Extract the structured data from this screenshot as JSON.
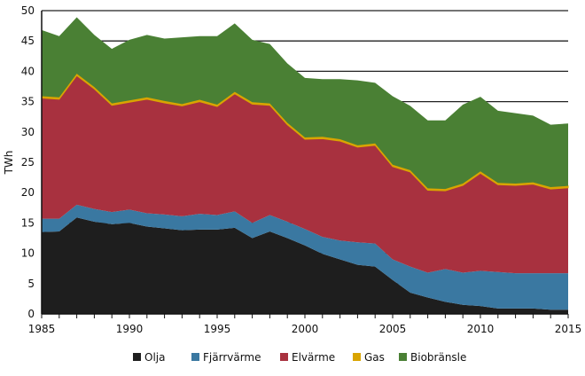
{
  "chart_data": {
    "type": "area",
    "stacked": true,
    "title": "",
    "xlabel": "",
    "ylabel": "TWh",
    "xlim": [
      1985,
      2015
    ],
    "ylim": [
      0,
      50
    ],
    "xticks": [
      "1985",
      "1990",
      "1995",
      "2000",
      "2005",
      "2010",
      "2015"
    ],
    "yticks": [
      "0",
      "5",
      "10",
      "15",
      "20",
      "25",
      "30",
      "35",
      "40",
      "45",
      "50"
    ],
    "grid": "horizontal",
    "legend": "bottom",
    "x": [
      1985,
      1986,
      1987,
      1988,
      1989,
      1990,
      1991,
      1992,
      1993,
      1994,
      1995,
      1996,
      1997,
      1998,
      1999,
      2000,
      2001,
      2002,
      2003,
      2004,
      2005,
      2006,
      2007,
      2008,
      2009,
      2010,
      2011,
      2012,
      2013,
      2014,
      2015
    ],
    "series": [
      {
        "name": "Olja",
        "color": "#1e1e1e",
        "values": [
          13.5,
          13.6,
          15.9,
          15.2,
          14.8,
          15.0,
          14.4,
          14.1,
          13.8,
          13.9,
          13.9,
          14.2,
          12.5,
          13.6,
          12.5,
          11.3,
          9.9,
          9.0,
          8.1,
          7.8,
          5.6,
          3.5,
          2.7,
          2.0,
          1.5,
          1.3,
          0.9,
          0.9,
          0.9,
          0.7,
          0.7
        ]
      },
      {
        "name": "Fjärrvärme",
        "color": "#3a78a1",
        "values": [
          2.2,
          2.1,
          2.1,
          2.1,
          2.0,
          2.2,
          2.2,
          2.3,
          2.3,
          2.6,
          2.4,
          2.7,
          2.5,
          2.7,
          2.7,
          2.7,
          2.8,
          3.1,
          3.7,
          3.8,
          3.4,
          4.3,
          4.1,
          5.4,
          5.3,
          5.8,
          6.0,
          5.8,
          5.8,
          6.0,
          6.0
        ]
      },
      {
        "name": "Elvärme",
        "color": "#a8313f",
        "values": [
          19.9,
          19.7,
          21.3,
          19.8,
          17.6,
          17.7,
          18.8,
          18.4,
          18.2,
          18.5,
          17.9,
          19.4,
          19.6,
          18.1,
          16.0,
          14.8,
          16.2,
          16.4,
          15.7,
          16.2,
          15.3,
          15.6,
          13.6,
          12.9,
          14.4,
          16.1,
          14.4,
          14.5,
          14.7,
          13.9,
          14.1
        ]
      },
      {
        "name": "Gas",
        "color": "#d9a400",
        "values": [
          0.3,
          0.3,
          0.3,
          0.3,
          0.3,
          0.3,
          0.3,
          0.3,
          0.3,
          0.3,
          0.3,
          0.3,
          0.3,
          0.3,
          0.3,
          0.3,
          0.3,
          0.3,
          0.3,
          0.3,
          0.3,
          0.3,
          0.3,
          0.3,
          0.3,
          0.3,
          0.3,
          0.3,
          0.3,
          0.3,
          0.3
        ]
      },
      {
        "name": "Biobränsle",
        "color": "#4a8034",
        "values": [
          10.9,
          10.1,
          9.3,
          8.6,
          9.0,
          10.0,
          10.3,
          10.3,
          11.0,
          10.5,
          11.3,
          11.3,
          10.3,
          9.8,
          9.8,
          9.8,
          9.5,
          9.9,
          10.7,
          10.0,
          11.3,
          10.6,
          11.2,
          11.3,
          13.0,
          12.3,
          11.9,
          11.6,
          11.0,
          10.3,
          10.3
        ]
      }
    ]
  }
}
